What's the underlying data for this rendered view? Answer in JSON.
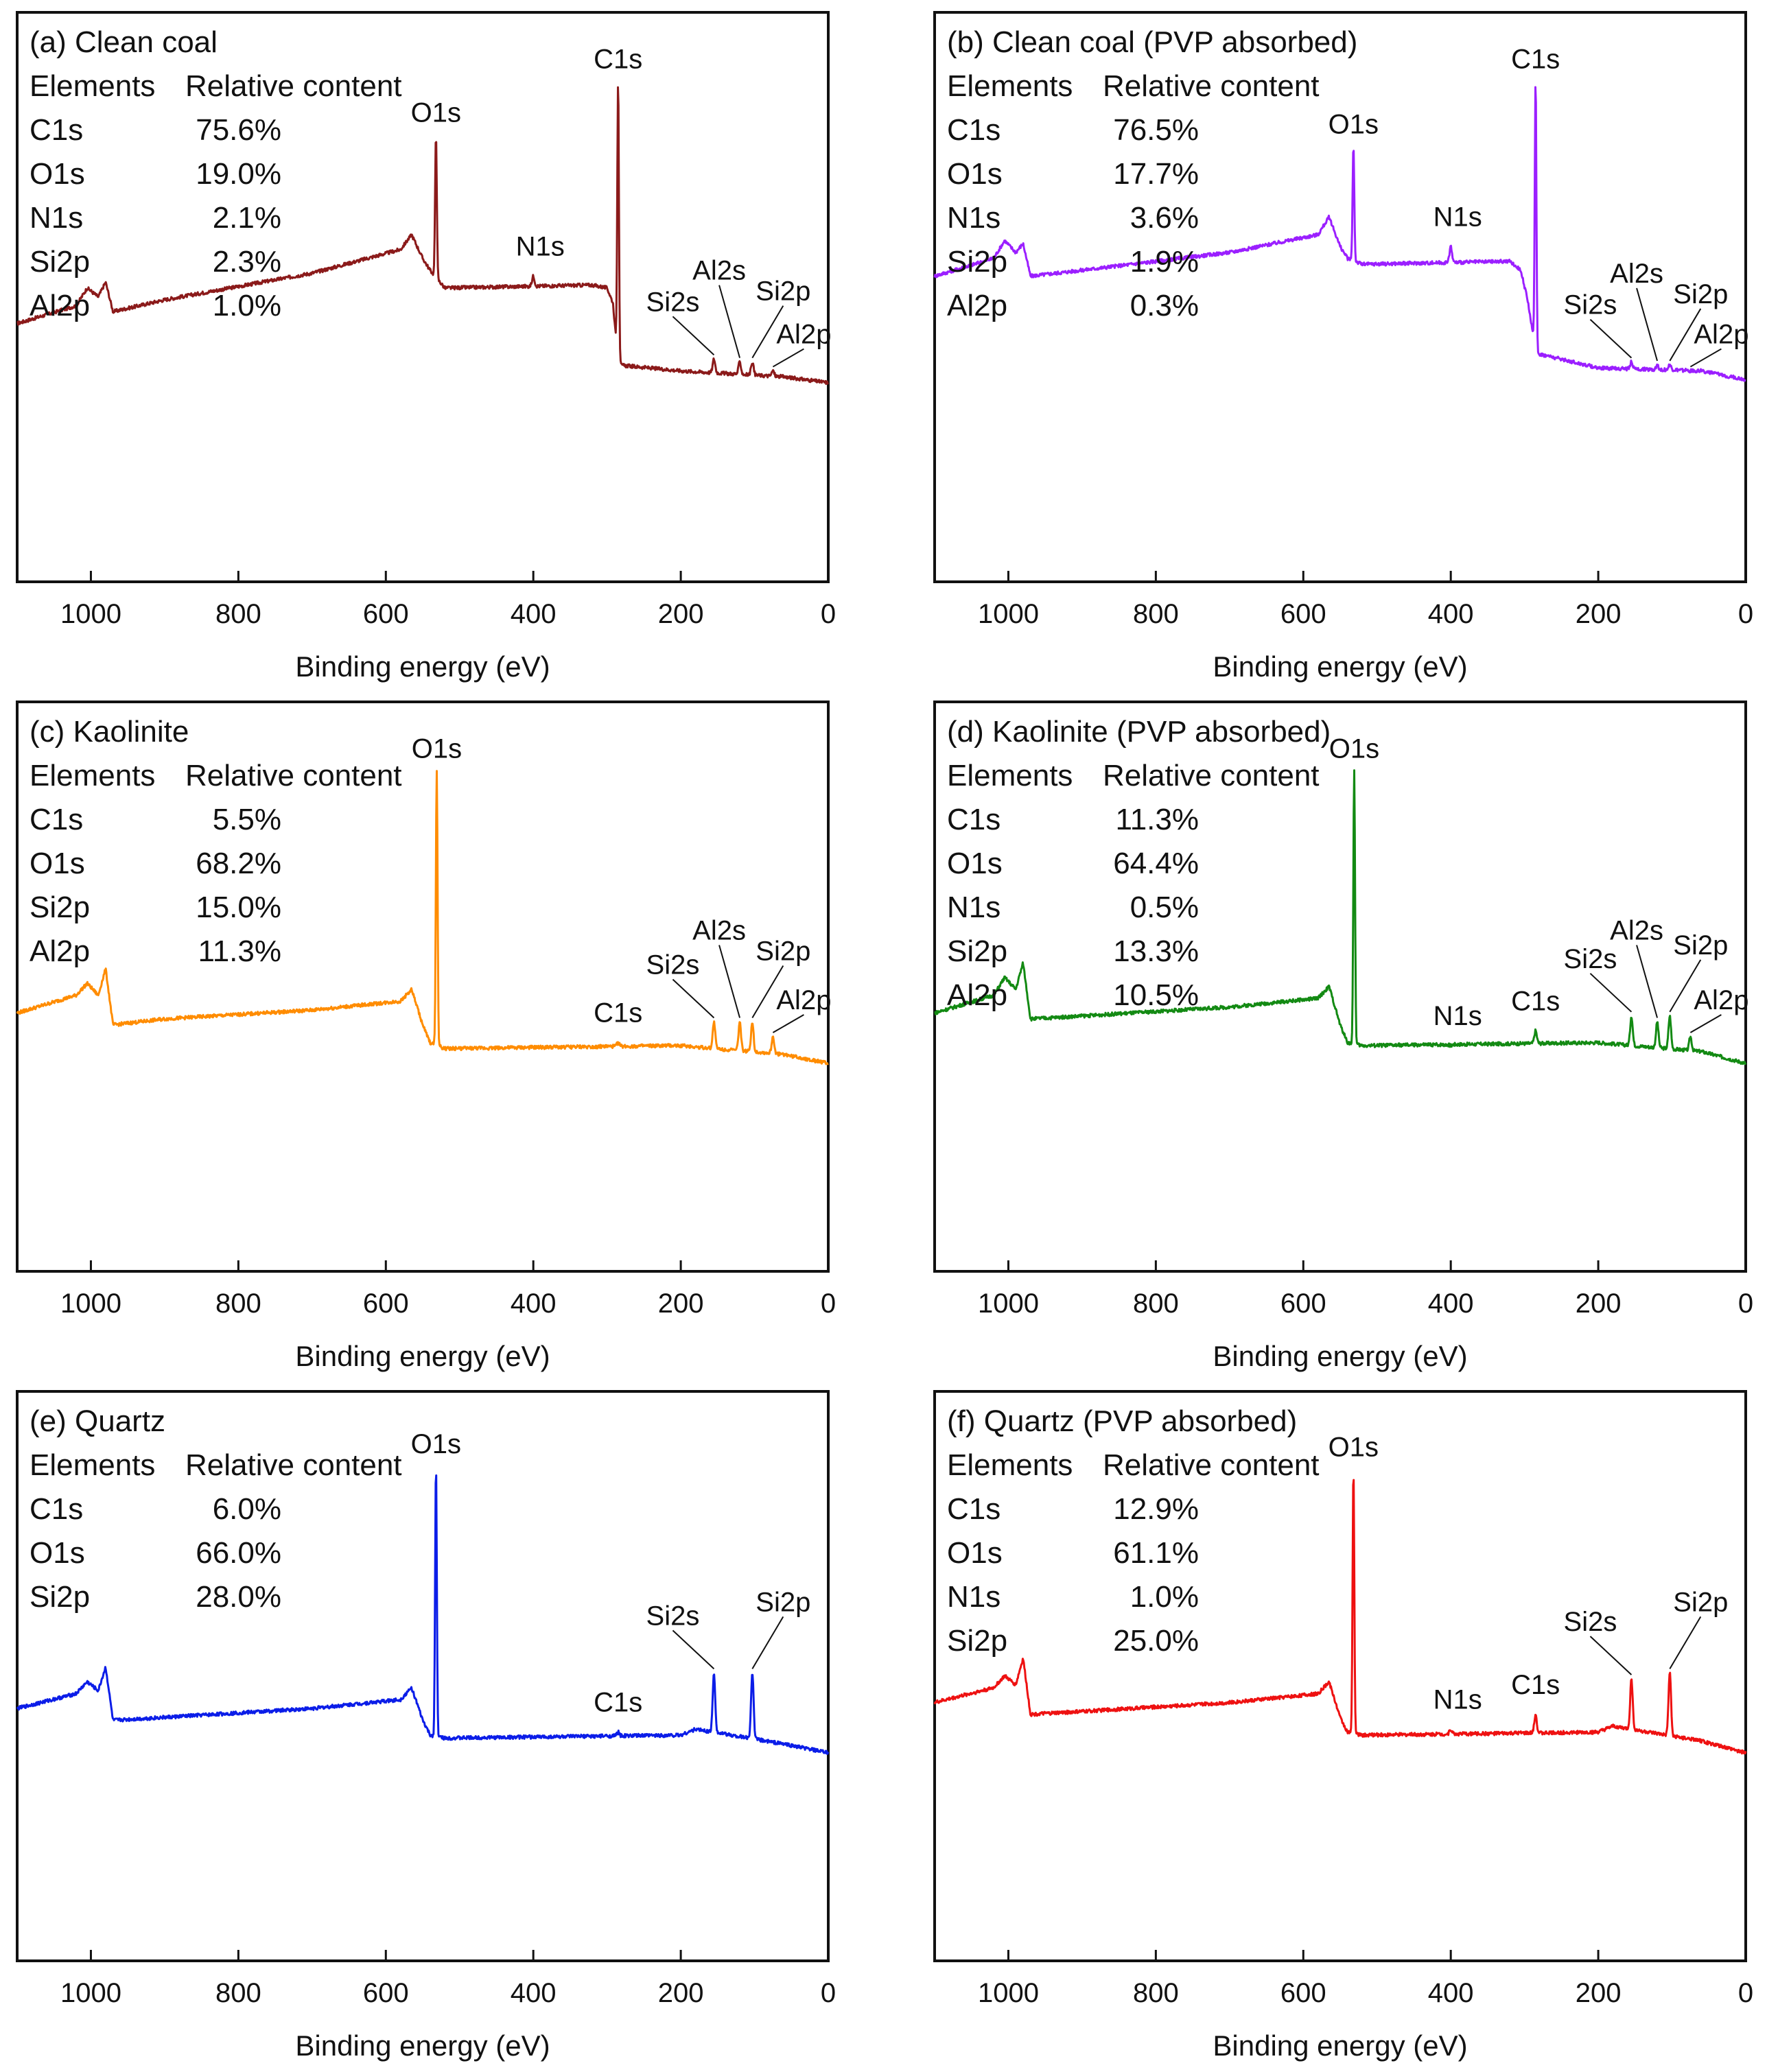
{
  "figure": {
    "type": "xps-survey-grid",
    "x_axis_label": "Binding energy (eV)",
    "x_ticks": [
      "1000",
      "800",
      "600",
      "400",
      "200",
      "0"
    ],
    "table_header": [
      "Elements",
      "Relative content"
    ]
  },
  "chart_data": [
    {
      "type": "line",
      "title": "(a) Clean coal",
      "xlabel": "Binding energy (eV)",
      "ylabel": "",
      "xlim": [
        1100,
        0
      ],
      "color": "#8b1a1a",
      "x_ticks": [
        1000,
        800,
        600,
        400,
        200,
        0
      ],
      "composition": [
        {
          "element": "C1s",
          "value": "75.6%"
        },
        {
          "element": "O1s",
          "value": "19.0%"
        },
        {
          "element": "N1s",
          "value": "2.1%"
        },
        {
          "element": "Si2p",
          "value": "2.3%"
        },
        {
          "element": "Al2p",
          "value": "1.0%"
        }
      ],
      "baseline": [
        [
          1100,
          0.18
        ],
        [
          1020,
          0.24
        ],
        [
          1005,
          0.3
        ],
        [
          990,
          0.27
        ],
        [
          980,
          0.32
        ],
        [
          970,
          0.22
        ],
        [
          900,
          0.26
        ],
        [
          700,
          0.35
        ],
        [
          580,
          0.43
        ],
        [
          565,
          0.48
        ],
        [
          550,
          0.4
        ],
        [
          540,
          0.36
        ],
        [
          520,
          0.3
        ],
        [
          320,
          0.31
        ],
        [
          300,
          0.3
        ],
        [
          292,
          0.25
        ],
        [
          285,
          0.04
        ],
        [
          200,
          0.02
        ],
        [
          60,
          0.0
        ],
        [
          0,
          -0.02
        ]
      ],
      "peaks": [
        {
          "label": "O1s",
          "be": 532,
          "height": 0.82
        },
        {
          "label": "C1s",
          "be": 285,
          "height": 1.0
        },
        {
          "label": "N1s",
          "be": 400,
          "height": 0.34
        },
        {
          "label": "Si2s",
          "be": 155,
          "height": 0.06
        },
        {
          "label": "Al2s",
          "be": 120,
          "height": 0.05
        },
        {
          "label": "Si2p",
          "be": 103,
          "height": 0.05
        },
        {
          "label": "Al2p",
          "be": 75,
          "height": 0.02
        }
      ]
    },
    {
      "type": "line",
      "title": "(b) Clean coal (PVP absorbed)",
      "xlabel": "Binding energy (eV)",
      "ylabel": "",
      "xlim": [
        1100,
        0
      ],
      "color": "#9b1fff",
      "x_ticks": [
        1000,
        800,
        600,
        400,
        200,
        0
      ],
      "composition": [
        {
          "element": "C1s",
          "value": "76.5%"
        },
        {
          "element": "O1s",
          "value": "17.7%"
        },
        {
          "element": "N1s",
          "value": "3.6%"
        },
        {
          "element": "Si2p",
          "value": "1.9%"
        },
        {
          "element": "Al2p",
          "value": "0.3%"
        }
      ],
      "baseline": [
        [
          1100,
          0.34
        ],
        [
          1020,
          0.4
        ],
        [
          1005,
          0.46
        ],
        [
          990,
          0.42
        ],
        [
          980,
          0.45
        ],
        [
          970,
          0.34
        ],
        [
          900,
          0.36
        ],
        [
          700,
          0.42
        ],
        [
          580,
          0.48
        ],
        [
          565,
          0.54
        ],
        [
          550,
          0.44
        ],
        [
          540,
          0.4
        ],
        [
          520,
          0.38
        ],
        [
          320,
          0.39
        ],
        [
          305,
          0.36
        ],
        [
          295,
          0.25
        ],
        [
          285,
          0.08
        ],
        [
          200,
          0.03
        ],
        [
          60,
          0.02
        ],
        [
          0,
          -0.01
        ]
      ],
      "peaks": [
        {
          "label": "O1s",
          "be": 532,
          "height": 0.78
        },
        {
          "label": "C1s",
          "be": 285,
          "height": 1.0
        },
        {
          "label": "N1s",
          "be": 400,
          "height": 0.44
        },
        {
          "label": "Si2s",
          "be": 155,
          "height": 0.05
        },
        {
          "label": "Al2s",
          "be": 120,
          "height": 0.04
        },
        {
          "label": "Si2p",
          "be": 103,
          "height": 0.04
        },
        {
          "label": "Al2p",
          "be": 75,
          "height": 0.02
        }
      ]
    },
    {
      "type": "line",
      "title": "(c) Kaolinite",
      "xlabel": "Binding energy (eV)",
      "ylabel": "",
      "xlim": [
        1100,
        0
      ],
      "color": "#ff8c00",
      "x_ticks": [
        1000,
        800,
        600,
        400,
        200,
        0
      ],
      "composition": [
        {
          "element": "C1s",
          "value": "5.5%"
        },
        {
          "element": "O1s",
          "value": "68.2%"
        },
        {
          "element": "Si2p",
          "value": "15.0%"
        },
        {
          "element": "Al2p",
          "value": "11.3%"
        }
      ],
      "baseline": [
        [
          1100,
          0.18
        ],
        [
          1020,
          0.24
        ],
        [
          1005,
          0.28
        ],
        [
          990,
          0.24
        ],
        [
          980,
          0.33
        ],
        [
          970,
          0.14
        ],
        [
          900,
          0.16
        ],
        [
          700,
          0.19
        ],
        [
          580,
          0.22
        ],
        [
          565,
          0.26
        ],
        [
          550,
          0.14
        ],
        [
          540,
          0.08
        ],
        [
          520,
          0.06
        ],
        [
          200,
          0.07
        ],
        [
          60,
          0.04
        ],
        [
          0,
          0.01
        ]
      ],
      "peaks": [
        {
          "label": "O1s",
          "be": 531,
          "height": 1.0
        },
        {
          "label": "C1s",
          "be": 285,
          "height": 0.08
        },
        {
          "label": "Si2s",
          "be": 155,
          "height": 0.15
        },
        {
          "label": "Al2s",
          "be": 120,
          "height": 0.15
        },
        {
          "label": "Si2p",
          "be": 103,
          "height": 0.15
        },
        {
          "label": "Al2p",
          "be": 75,
          "height": 0.1
        }
      ]
    },
    {
      "type": "line",
      "title": "(d) Kaolinite (PVP absorbed)",
      "xlabel": "Binding energy (eV)",
      "ylabel": "",
      "xlim": [
        1100,
        0
      ],
      "color": "#138a13",
      "x_ticks": [
        1000,
        800,
        600,
        400,
        200,
        0
      ],
      "composition": [
        {
          "element": "C1s",
          "value": "11.3%"
        },
        {
          "element": "O1s",
          "value": "64.4%"
        },
        {
          "element": "N1s",
          "value": "0.5%"
        },
        {
          "element": "Si2p",
          "value": "13.3%"
        },
        {
          "element": "Al2p",
          "value": "10.5%"
        }
      ],
      "baseline": [
        [
          1100,
          0.18
        ],
        [
          1020,
          0.24
        ],
        [
          1005,
          0.3
        ],
        [
          990,
          0.26
        ],
        [
          980,
          0.35
        ],
        [
          970,
          0.16
        ],
        [
          900,
          0.17
        ],
        [
          700,
          0.2
        ],
        [
          580,
          0.23
        ],
        [
          565,
          0.27
        ],
        [
          550,
          0.14
        ],
        [
          540,
          0.08
        ],
        [
          520,
          0.07
        ],
        [
          200,
          0.08
        ],
        [
          60,
          0.05
        ],
        [
          0,
          0.01
        ]
      ],
      "peaks": [
        {
          "label": "O1s",
          "be": 531,
          "height": 1.0
        },
        {
          "label": "N1s",
          "be": 400,
          "height": 0.07
        },
        {
          "label": "C1s",
          "be": 285,
          "height": 0.12
        },
        {
          "label": "Si2s",
          "be": 155,
          "height": 0.17
        },
        {
          "label": "Al2s",
          "be": 120,
          "height": 0.15
        },
        {
          "label": "Si2p",
          "be": 103,
          "height": 0.17
        },
        {
          "label": "Al2p",
          "be": 75,
          "height": 0.1
        }
      ]
    },
    {
      "type": "line",
      "title": "(e) Quartz",
      "xlabel": "Binding energy (eV)",
      "ylabel": "",
      "xlim": [
        1100,
        0
      ],
      "color": "#0b1de8",
      "x_ticks": [
        1000,
        800,
        600,
        400,
        200,
        0
      ],
      "composition": [
        {
          "element": "C1s",
          "value": "6.0%"
        },
        {
          "element": "O1s",
          "value": "66.0%"
        },
        {
          "element": "Si2p",
          "value": "28.0%"
        }
      ],
      "baseline": [
        [
          1100,
          0.16
        ],
        [
          1020,
          0.21
        ],
        [
          1005,
          0.25
        ],
        [
          990,
          0.22
        ],
        [
          980,
          0.3
        ],
        [
          970,
          0.12
        ],
        [
          900,
          0.13
        ],
        [
          700,
          0.16
        ],
        [
          580,
          0.19
        ],
        [
          565,
          0.23
        ],
        [
          550,
          0.12
        ],
        [
          540,
          0.07
        ],
        [
          520,
          0.06
        ],
        [
          200,
          0.07
        ],
        [
          180,
          0.09
        ],
        [
          60,
          0.04
        ],
        [
          0,
          0.01
        ]
      ],
      "peaks": [
        {
          "label": "O1s",
          "be": 532,
          "height": 0.98
        },
        {
          "label": "C1s",
          "be": 285,
          "height": 0.08
        },
        {
          "label": "Si2s",
          "be": 155,
          "height": 0.28
        },
        {
          "label": "Si2p",
          "be": 103,
          "height": 0.28
        }
      ]
    },
    {
      "type": "line",
      "title": "(f) Quartz (PVP absorbed)",
      "xlabel": "Binding energy (eV)",
      "ylabel": "",
      "xlim": [
        1100,
        0
      ],
      "color": "#ee1111",
      "x_ticks": [
        1000,
        800,
        600,
        400,
        200,
        0
      ],
      "composition": [
        {
          "element": "C1s",
          "value": "12.9%"
        },
        {
          "element": "O1s",
          "value": "61.1%"
        },
        {
          "element": "N1s",
          "value": "1.0%"
        },
        {
          "element": "Si2p",
          "value": "25.0%"
        }
      ],
      "baseline": [
        [
          1100,
          0.18
        ],
        [
          1020,
          0.23
        ],
        [
          1005,
          0.27
        ],
        [
          990,
          0.24
        ],
        [
          980,
          0.33
        ],
        [
          970,
          0.14
        ],
        [
          900,
          0.15
        ],
        [
          700,
          0.18
        ],
        [
          580,
          0.21
        ],
        [
          565,
          0.25
        ],
        [
          550,
          0.13
        ],
        [
          540,
          0.08
        ],
        [
          520,
          0.07
        ],
        [
          200,
          0.08
        ],
        [
          180,
          0.1
        ],
        [
          60,
          0.05
        ],
        [
          0,
          0.01
        ]
      ],
      "peaks": [
        {
          "label": "O1s",
          "be": 532,
          "height": 0.97
        },
        {
          "label": "N1s",
          "be": 400,
          "height": 0.09
        },
        {
          "label": "C1s",
          "be": 285,
          "height": 0.14
        },
        {
          "label": "Si2s",
          "be": 155,
          "height": 0.26
        },
        {
          "label": "Si2p",
          "be": 103,
          "height": 0.28
        }
      ]
    }
  ]
}
